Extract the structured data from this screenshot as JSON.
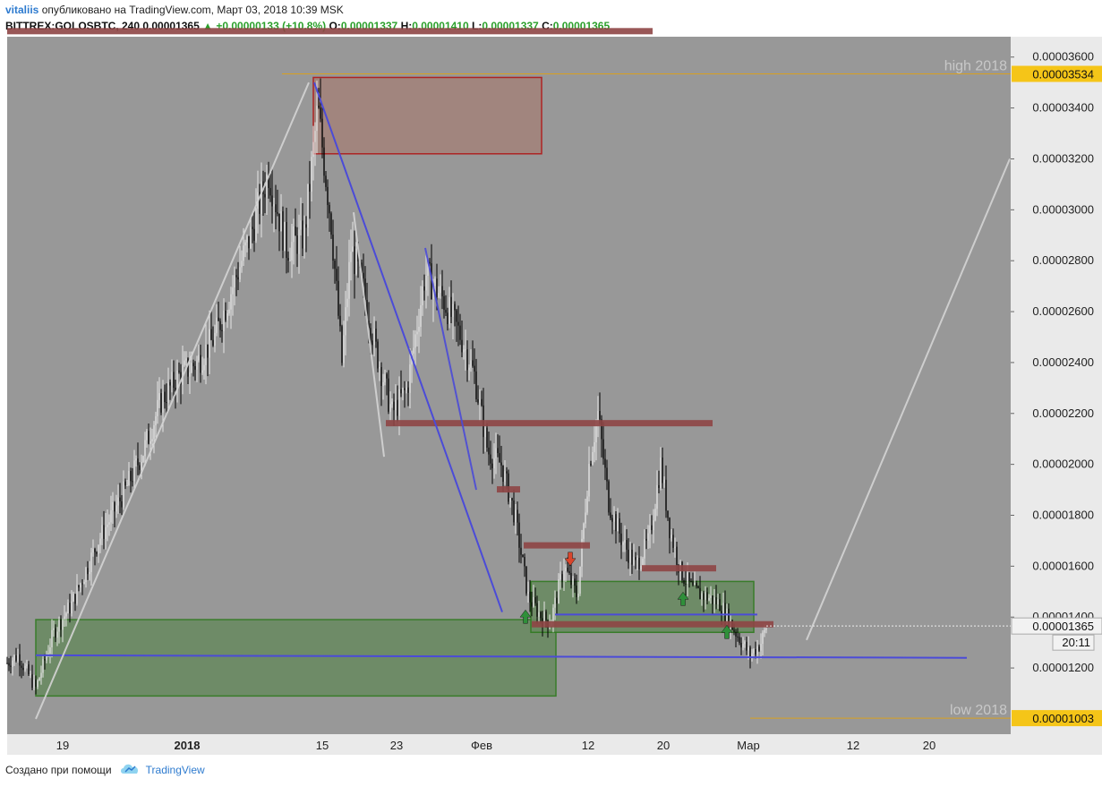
{
  "header": {
    "author": "vitaliis",
    "published_text": "опубликовано на TradingView.com, Март 03, 2018 10:39 MSK"
  },
  "symbol_bar": {
    "symbol": "BITTREX:GOLOSBTC, 240",
    "price": "0.00001365",
    "change": "+0.00000133 (+10.8%)",
    "open_label": "O:",
    "open": "0.00001337",
    "high_label": "H:",
    "high": "0.00001410",
    "low_label": "L:",
    "low": "0.00001337",
    "close_label": "C:",
    "close": "0.00001365"
  },
  "footer": {
    "created_with": "Создано при помощи",
    "brand": "TradingView",
    "logo_icon": "tradingview-cloud-icon"
  },
  "colors": {
    "plot_bg": "#989898",
    "axis_bg": "#eaeaea",
    "up_candle": "#e6e6e6",
    "down_candle": "#000000",
    "support_line": "#4b4bd8",
    "resistance_zone": "#8e4545",
    "demand_zone": "#6a8a62",
    "demand_border": "#2f7a1f",
    "supply_zone": "#a3847c",
    "supply_border": "#b01818",
    "level_line": "#d8a020",
    "trend_line": "#d4d4d4"
  },
  "chart_data": {
    "type": "candlestick",
    "title": "",
    "ylim": [
      9.4e-06,
      3.68e-05
    ],
    "y_ticks": [
      "0.00003600",
      "0.00003400",
      "0.00003200",
      "0.00003000",
      "0.00002800",
      "0.00002600",
      "0.00002400",
      "0.00002200",
      "0.00002000",
      "0.00001800",
      "0.00001600",
      "0.00001400",
      "0.00001200"
    ],
    "x_ticks": [
      {
        "label": "19",
        "bold": false
      },
      {
        "label": "2018",
        "bold": true
      },
      {
        "label": "15",
        "bold": false
      },
      {
        "label": "23",
        "bold": false
      },
      {
        "label": "Фев",
        "bold": false
      },
      {
        "label": "12",
        "bold": false
      },
      {
        "label": "20",
        "bold": false
      },
      {
        "label": "Мар",
        "bold": false
      },
      {
        "label": "12",
        "bold": false
      },
      {
        "label": "20",
        "bold": false
      }
    ],
    "price_anchors": [
      [
        0,
        1.2e-05
      ],
      [
        20,
        1.25e-05
      ],
      [
        40,
        1.12e-05
      ],
      [
        60,
        1.34e-05
      ],
      [
        80,
        1.45e-05
      ],
      [
        110,
        1.7e-05
      ],
      [
        140,
        1.9e-05
      ],
      [
        160,
        2.05e-05
      ],
      [
        180,
        2.25e-05
      ],
      [
        200,
        2.35e-05
      ],
      [
        220,
        2.4e-05
      ],
      [
        240,
        2.5e-05
      ],
      [
        260,
        2.7e-05
      ],
      [
        280,
        2.9e-05
      ],
      [
        300,
        3.15e-05
      ],
      [
        320,
        2.85e-05
      ],
      [
        340,
        2.9e-05
      ],
      [
        355,
        3.4e-05
      ],
      [
        370,
        2.95e-05
      ],
      [
        382,
        2.4e-05
      ],
      [
        392,
        2.85e-05
      ],
      [
        405,
        2.7e-05
      ],
      [
        420,
        2.45e-05
      ],
      [
        438,
        2.2e-05
      ],
      [
        455,
        2.3e-05
      ],
      [
        475,
        2.75e-05
      ],
      [
        495,
        2.65e-05
      ],
      [
        515,
        2.5e-05
      ],
      [
        530,
        2.35e-05
      ],
      [
        545,
        2.05e-05
      ],
      [
        560,
        2e-05
      ],
      [
        575,
        1.8e-05
      ],
      [
        590,
        1.48e-05
      ],
      [
        605,
        1.4e-05
      ],
      [
        615,
        1.38e-05
      ],
      [
        630,
        1.6e-05
      ],
      [
        645,
        1.48e-05
      ],
      [
        658,
        2e-05
      ],
      [
        668,
        2.2e-05
      ],
      [
        680,
        1.85e-05
      ],
      [
        695,
        1.7e-05
      ],
      [
        710,
        1.6e-05
      ],
      [
        725,
        1.7e-05
      ],
      [
        738,
        2e-05
      ],
      [
        748,
        1.75e-05
      ],
      [
        760,
        1.58e-05
      ],
      [
        775,
        1.5e-05
      ],
      [
        790,
        1.48e-05
      ],
      [
        805,
        1.45e-05
      ],
      [
        820,
        1.35e-05
      ],
      [
        838,
        1.25e-05
      ],
      [
        850,
        1.3e-05
      ],
      [
        856,
        1.36e-05
      ]
    ],
    "zones": [
      {
        "kind": "supply",
        "x1": 350,
        "x2": 605,
        "y_top": 3.52e-05,
        "y_bottom": 3.22e-05
      },
      {
        "kind": "demand",
        "x1": 40,
        "x2": 621,
        "y_top": 1.39e-05,
        "y_bottom": 1.09e-05
      },
      {
        "kind": "demand",
        "x1": 593,
        "x2": 842,
        "y_top": 1.54e-05,
        "y_bottom": 1.34e-05
      }
    ],
    "resistance_bars": [
      {
        "x1": 8,
        "x2": 729,
        "y": 3.7e-05
      },
      {
        "x1": 431,
        "x2": 796,
        "y": 2.16e-05
      },
      {
        "x1": 555,
        "x2": 581,
        "y": 1.9e-05
      },
      {
        "x1": 585,
        "x2": 659,
        "y": 1.68e-05
      },
      {
        "x1": 717,
        "x2": 800,
        "y": 1.59e-05
      },
      {
        "x1": 594,
        "x2": 864,
        "y": 1.37e-05
      }
    ],
    "blue_lines": [
      {
        "x1": 40,
        "y1": 1.25e-05,
        "x2": 1080,
        "y2": 1.24e-05
      },
      {
        "x1": 620,
        "y1": 1.41e-05,
        "x2": 846,
        "y2": 1.41e-05
      },
      {
        "x1": 351,
        "y1": 3.5e-05,
        "x2": 561,
        "y2": 1.42e-05
      }
    ],
    "trend_lines": [
      {
        "color": "white",
        "x1": 40,
        "y1": 1e-05,
        "x2": 345,
        "y2": 3.5e-05
      },
      {
        "color": "white",
        "x1": 395,
        "y1": 2.99e-05,
        "x2": 429,
        "y2": 2.03e-05
      },
      {
        "color": "white",
        "x1": 901,
        "y1": 1.31e-05,
        "x2": 1128,
        "y2": 3.2e-05
      },
      {
        "color": "blue",
        "x1": 475,
        "y1": 2.85e-05,
        "x2": 532,
        "y2": 1.9e-05
      }
    ],
    "annotations": [
      {
        "text": "high 2018",
        "value": "0.00003534",
        "y": 3.534e-05
      },
      {
        "text": "low 2018",
        "value": "0.00001003",
        "y": 1.003e-05
      }
    ],
    "current_price": {
      "value": "0.00001365",
      "timer": "20:11",
      "y": 1.365e-05
    },
    "signal_arrows": [
      {
        "dir": "up",
        "color": "green",
        "x": 587,
        "y": 1.4e-05
      },
      {
        "dir": "down",
        "color": "red",
        "x": 637,
        "y": 1.63e-05
      },
      {
        "dir": "up",
        "color": "green",
        "x": 763,
        "y": 1.47e-05
      },
      {
        "dir": "up",
        "color": "green",
        "x": 812,
        "y": 1.34e-05
      }
    ]
  }
}
